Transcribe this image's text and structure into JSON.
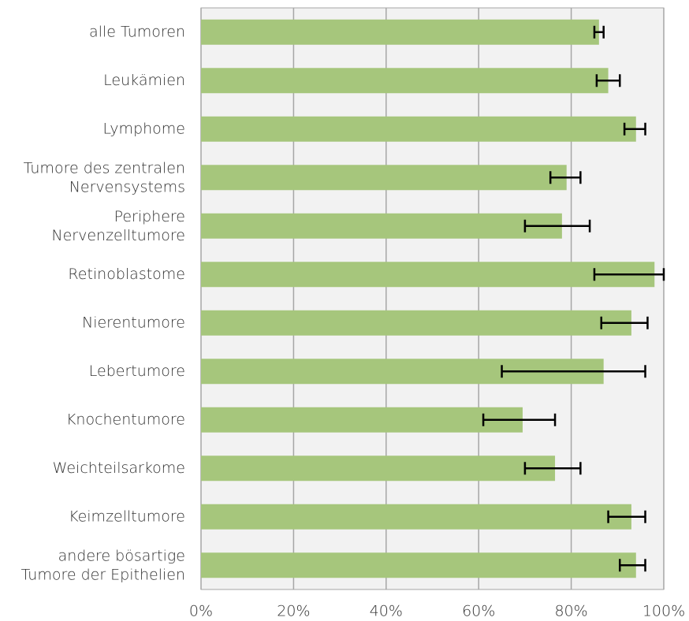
{
  "chart_data": {
    "type": "hbar",
    "categories": [
      "alle Tumoren",
      "Leukämien",
      "Lymphome",
      [
        "Tumore des zentralen",
        "Nervensystems"
      ],
      [
        "Periphere",
        "Nervenzelltumore"
      ],
      "Retinoblastome",
      "Nierentumore",
      "Lebertumore",
      "Knochentumore",
      "Weichteilsarkome",
      "Keimzelltumore",
      [
        "andere bösartige",
        "Tumore der Epithelien"
      ]
    ],
    "values": [
      86,
      88,
      94,
      79,
      78,
      98,
      93,
      87,
      69.5,
      76.5,
      93,
      94
    ],
    "error_minus": [
      1,
      2.5,
      2.5,
      3.5,
      8,
      13,
      6.5,
      22,
      8.5,
      6.5,
      5,
      3.5
    ],
    "error_plus": [
      1,
      2.5,
      2,
      3,
      6,
      2,
      3.5,
      9,
      7,
      5.5,
      3,
      2
    ],
    "color": "#a6c67c",
    "xlim": [
      0,
      100
    ],
    "xticks": [
      {
        "value": 0,
        "label": "0%"
      },
      {
        "value": 20,
        "label": "20%"
      },
      {
        "value": 40,
        "label": "40%"
      },
      {
        "value": 60,
        "label": "60%"
      },
      {
        "value": 80,
        "label": "80%"
      },
      {
        "value": 100,
        "label": "100%"
      }
    ],
    "grid": true
  }
}
